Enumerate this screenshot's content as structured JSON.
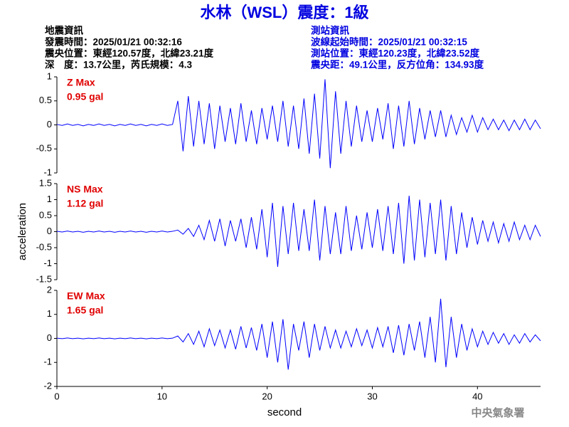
{
  "header": {
    "title": "水林（WSL）震度：1級",
    "left": [
      "地震資訊",
      "發震時間：2025/01/21 00:32:16",
      "震央位置：東經120.57度，北緯23.21度",
      "深　度：13.7公里，芮氏規模：4.3"
    ],
    "right": [
      "測站資訊",
      "波線起始時間：2025/01/21 00:32:15",
      "測站位置：東經120.23度，北緯23.52度",
      "震央距：49.1公里，反方位角：134.93度"
    ]
  },
  "chart_data": [
    {
      "type": "line",
      "annotations": [
        "Z Max",
        "0.95 gal"
      ],
      "color": "#0000ff",
      "x": [
        0,
        0.5,
        1,
        1.5,
        2,
        2.5,
        3,
        3.5,
        4,
        4.5,
        5,
        5.5,
        6,
        6.5,
        7,
        7.5,
        8,
        8.5,
        9,
        9.5,
        10,
        10.5,
        11,
        11.5,
        12,
        12.5,
        13,
        13.5,
        14,
        14.5,
        15,
        15.5,
        16,
        16.5,
        17,
        17.5,
        18,
        18.5,
        19,
        19.5,
        20,
        20.5,
        21,
        21.5,
        22,
        22.5,
        23,
        23.5,
        24,
        24.5,
        25,
        25.5,
        26,
        26.5,
        27,
        27.5,
        28,
        28.5,
        29,
        29.5,
        30,
        30.5,
        31,
        31.5,
        32,
        32.5,
        33,
        33.5,
        34,
        34.5,
        35,
        35.5,
        36,
        36.5,
        37,
        37.5,
        38,
        38.5,
        39,
        39.5,
        40,
        40.5,
        41,
        41.5,
        42,
        42.5,
        43,
        43.5,
        44,
        44.5,
        45,
        45.5,
        46
      ],
      "values": [
        0.01,
        -0.01,
        0.02,
        -0.01,
        0.01,
        -0.02,
        0.01,
        -0.01,
        0.02,
        -0.01,
        0.01,
        -0.02,
        0.01,
        -0.01,
        0.02,
        -0.01,
        0.01,
        -0.02,
        0.01,
        -0.01,
        0.02,
        -0.01,
        0.01,
        0.5,
        -0.55,
        0.6,
        -0.45,
        0.5,
        -0.4,
        0.45,
        -0.5,
        0.4,
        -0.35,
        0.35,
        -0.4,
        0.45,
        -0.35,
        0.3,
        -0.4,
        0.35,
        -0.3,
        0.4,
        -0.35,
        0.5,
        -0.45,
        0.4,
        -0.5,
        0.55,
        -0.6,
        0.65,
        -0.7,
        0.95,
        -0.9,
        0.7,
        -0.6,
        0.5,
        -0.45,
        0.4,
        -0.35,
        0.3,
        -0.35,
        0.35,
        -0.3,
        0.45,
        -0.5,
        0.4,
        -0.45,
        0.5,
        -0.4,
        0.35,
        -0.3,
        0.3,
        -0.25,
        0.3,
        -0.25,
        0.2,
        -0.2,
        0.15,
        -0.15,
        0.2,
        -0.15,
        0.15,
        -0.1,
        0.12,
        -0.1,
        0.1,
        -0.12,
        0.1,
        -0.1,
        0.12,
        -0.1,
        0.1,
        -0.08
      ],
      "xlim": [
        0,
        46
      ],
      "ylim": [
        -1,
        1
      ],
      "yticks": [
        -1,
        -0.5,
        0,
        0.5,
        1
      ]
    },
    {
      "type": "line",
      "annotations": [
        "NS Max",
        "1.12 gal"
      ],
      "color": "#0000ff",
      "ylabel": "acceleration",
      "x": [
        0,
        0.5,
        1,
        1.5,
        2,
        2.5,
        3,
        3.5,
        4,
        4.5,
        5,
        5.5,
        6,
        6.5,
        7,
        7.5,
        8,
        8.5,
        9,
        9.5,
        10,
        10.5,
        11,
        11.5,
        12,
        12.5,
        13,
        13.5,
        14,
        14.5,
        15,
        15.5,
        16,
        16.5,
        17,
        17.5,
        18,
        18.5,
        19,
        19.5,
        20,
        20.5,
        21,
        21.5,
        22,
        22.5,
        23,
        23.5,
        24,
        24.5,
        25,
        25.5,
        26,
        26.5,
        27,
        27.5,
        28,
        28.5,
        29,
        29.5,
        30,
        30.5,
        31,
        31.5,
        32,
        32.5,
        33,
        33.5,
        34,
        34.5,
        35,
        35.5,
        36,
        36.5,
        37,
        37.5,
        38,
        38.5,
        39,
        39.5,
        40,
        40.5,
        41,
        41.5,
        42,
        42.5,
        43,
        43.5,
        44,
        44.5,
        45,
        45.5,
        46
      ],
      "values": [
        0.01,
        -0.01,
        0.02,
        -0.01,
        0.01,
        -0.02,
        0.01,
        -0.01,
        0.02,
        -0.01,
        0.01,
        -0.02,
        0.01,
        -0.01,
        0.02,
        -0.01,
        0.01,
        -0.02,
        0.01,
        -0.01,
        0.02,
        -0.01,
        0.01,
        0.05,
        -0.08,
        0.1,
        -0.15,
        0.2,
        -0.25,
        0.35,
        -0.3,
        0.4,
        -0.45,
        0.35,
        -0.3,
        0.4,
        -0.5,
        0.45,
        -0.55,
        0.7,
        -0.8,
        0.9,
        -1.1,
        0.8,
        -0.7,
        0.9,
        -0.6,
        0.7,
        -0.6,
        1.0,
        -0.9,
        0.8,
        -0.7,
        0.6,
        -0.7,
        0.8,
        -0.6,
        0.5,
        -0.55,
        0.6,
        -0.5,
        0.7,
        -0.6,
        0.8,
        -0.7,
        0.9,
        -1.0,
        1.12,
        -0.9,
        1.0,
        -0.8,
        0.9,
        -0.7,
        1.0,
        -0.9,
        0.8,
        -0.7,
        0.6,
        -0.5,
        0.45,
        -0.4,
        0.35,
        -0.3,
        0.3,
        -0.35,
        0.25,
        -0.3,
        0.3,
        -0.25,
        0.2,
        -0.25,
        0.2,
        -0.15
      ],
      "xlim": [
        0,
        46
      ],
      "ylim": [
        -1.5,
        1.5
      ],
      "yticks": [
        -1.5,
        -1,
        -0.5,
        0,
        0.5,
        1,
        1.5
      ]
    },
    {
      "type": "line",
      "annotations": [
        "EW Max",
        "1.65 gal"
      ],
      "color": "#0000ff",
      "xlabel": "second",
      "x": [
        0,
        0.5,
        1,
        1.5,
        2,
        2.5,
        3,
        3.5,
        4,
        4.5,
        5,
        5.5,
        6,
        6.5,
        7,
        7.5,
        8,
        8.5,
        9,
        9.5,
        10,
        10.5,
        11,
        11.5,
        12,
        12.5,
        13,
        13.5,
        14,
        14.5,
        15,
        15.5,
        16,
        16.5,
        17,
        17.5,
        18,
        18.5,
        19,
        19.5,
        20,
        20.5,
        21,
        21.5,
        22,
        22.5,
        23,
        23.5,
        24,
        24.5,
        25,
        25.5,
        26,
        26.5,
        27,
        27.5,
        28,
        28.5,
        29,
        29.5,
        30,
        30.5,
        31,
        31.5,
        32,
        32.5,
        33,
        33.5,
        34,
        34.5,
        35,
        35.5,
        36,
        36.5,
        37,
        37.5,
        38,
        38.5,
        39,
        39.5,
        40,
        40.5,
        41,
        41.5,
        42,
        42.5,
        43,
        43.5,
        44,
        44.5,
        45,
        45.5,
        46
      ],
      "values": [
        0.01,
        -0.01,
        0.02,
        -0.01,
        0.01,
        -0.02,
        0.01,
        -0.01,
        0.02,
        -0.01,
        0.01,
        -0.02,
        0.01,
        -0.01,
        0.02,
        -0.01,
        0.01,
        -0.02,
        0.01,
        -0.01,
        0.02,
        -0.01,
        0.01,
        0.1,
        -0.15,
        0.2,
        -0.25,
        0.3,
        -0.35,
        0.4,
        -0.3,
        0.35,
        -0.4,
        0.35,
        -0.45,
        0.5,
        -0.4,
        0.45,
        -0.5,
        0.6,
        -0.8,
        0.7,
        -1.0,
        0.8,
        -1.3,
        0.6,
        -0.5,
        0.7,
        -0.8,
        0.6,
        -0.5,
        0.5,
        -0.4,
        0.35,
        -0.4,
        0.3,
        -0.35,
        0.4,
        -0.3,
        0.35,
        -0.4,
        0.45,
        -0.35,
        0.5,
        -0.6,
        0.55,
        -0.7,
        0.6,
        -0.5,
        0.7,
        -0.8,
        0.9,
        -1.0,
        1.65,
        -1.2,
        0.9,
        -0.8,
        0.6,
        -0.5,
        0.4,
        -0.35,
        0.3,
        -0.25,
        0.25,
        -0.2,
        0.2,
        -0.25,
        0.15,
        -0.2,
        0.2,
        -0.15,
        0.15,
        -0.1
      ],
      "xlim": [
        0,
        46
      ],
      "ylim": [
        -2,
        2
      ],
      "yticks": [
        -2,
        -1,
        0,
        1,
        2
      ],
      "xticks": [
        0,
        10,
        20,
        30,
        40
      ]
    }
  ],
  "footer": "中央氣象署"
}
